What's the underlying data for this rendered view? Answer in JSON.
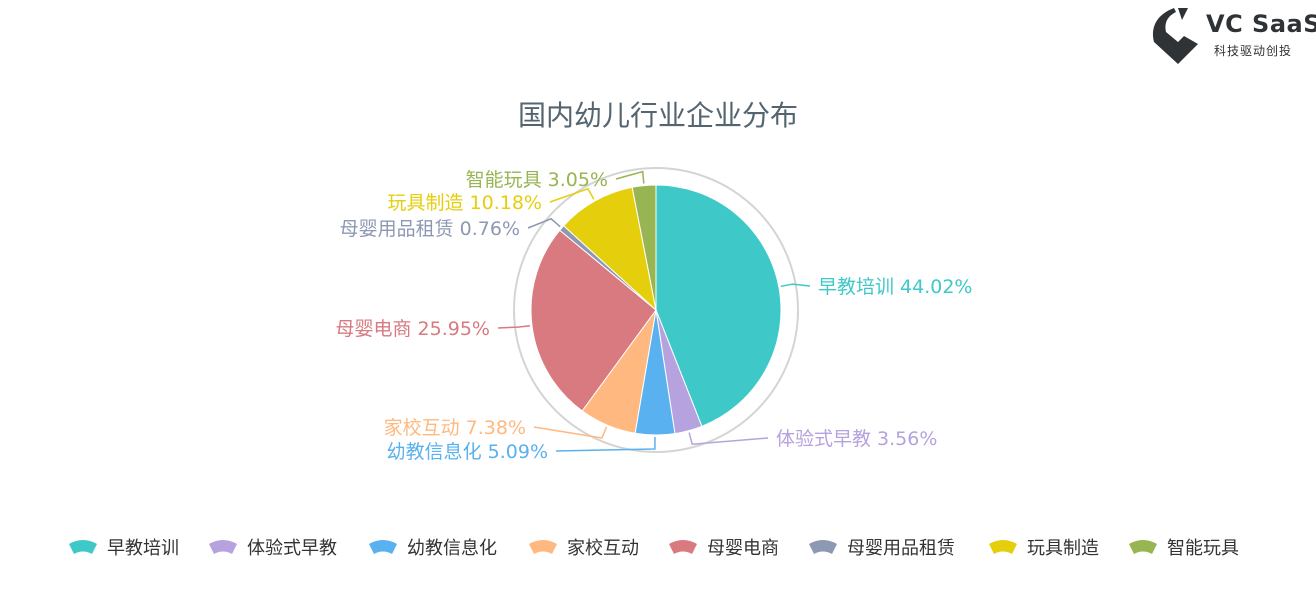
{
  "logo": {
    "title": "VC SaaS",
    "subtitle": "科技驱动创投",
    "color": "#2f3336"
  },
  "chart_data": {
    "type": "pie",
    "title": "国内幼儿行业企业分布",
    "unit": "%",
    "slices": [
      {
        "name": "早教培训",
        "value": 44.02,
        "label": "早教培训 44.02%",
        "color": "#3ec8c8"
      },
      {
        "name": "体验式早教",
        "value": 3.56,
        "label": "体验式早教 3.56%",
        "color": "#b6a2de"
      },
      {
        "name": "幼教信息化",
        "value": 5.09,
        "label": "幼教信息化 5.09%",
        "color": "#5ab1ef"
      },
      {
        "name": "家校互动",
        "value": 7.38,
        "label": "家校互动 7.38%",
        "color": "#ffb980"
      },
      {
        "name": "母婴电商",
        "value": 25.95,
        "label": "母婴电商 25.95%",
        "color": "#d87a80"
      },
      {
        "name": "母婴用品租赁",
        "value": 0.76,
        "label": "母婴用品租赁 0.76%",
        "color": "#8d98b3"
      },
      {
        "name": "玩具制造",
        "value": 10.18,
        "label": "玩具制造 10.18%",
        "color": "#e5cf0d"
      },
      {
        "name": "智能玩具",
        "value": 3.05,
        "label": "智能玩具 3.05%",
        "color": "#97b552"
      }
    ],
    "legend_position": "bottom"
  }
}
